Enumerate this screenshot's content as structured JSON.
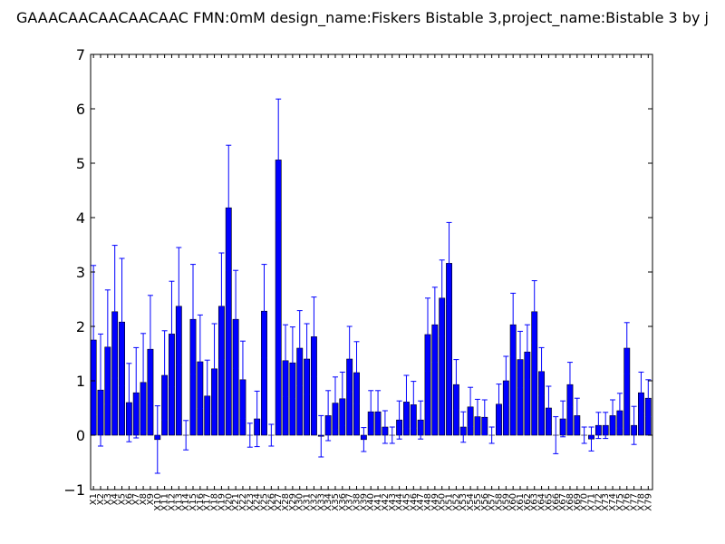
{
  "colors": {
    "bar": "#0000ff",
    "bar_edge": "#000000",
    "error": "#0000ff",
    "axes": "#000000",
    "background": "#ffffff"
  },
  "chart_data": {
    "type": "bar",
    "title": "GAAACAACAACAACAAC  FMN:0mM  design_name:Fiskers Bistable 3,project_name:Bistable 3 by j",
    "xlabel": "",
    "ylabel": "",
    "ylim": [
      -1,
      7
    ],
    "yticks": [
      -1,
      0,
      1,
      2,
      3,
      4,
      5,
      6,
      7
    ],
    "grid": false,
    "categories": [
      "X1",
      "X2",
      "X3",
      "X4",
      "X5",
      "X6",
      "X7",
      "X8",
      "X9",
      "X10",
      "X11",
      "X12",
      "X13",
      "X14",
      "X15",
      "X16",
      "X17",
      "X18",
      "X19",
      "X20",
      "X21",
      "X22",
      "X23",
      "X24",
      "X25",
      "X26",
      "X27",
      "X28",
      "X29",
      "X30",
      "X31",
      "X32",
      "X33",
      "X34",
      "X35",
      "X36",
      "X37",
      "X38",
      "X39",
      "X40",
      "X41",
      "X42",
      "X43",
      "X44",
      "X45",
      "X46",
      "X47",
      "X48",
      "X49",
      "X50",
      "X51",
      "X52",
      "X53",
      "X54",
      "X55",
      "X56",
      "X57",
      "X58",
      "X59",
      "X60",
      "X61",
      "X62",
      "X63",
      "X64",
      "X65",
      "X66",
      "X67",
      "X68",
      "X69",
      "X70",
      "X71",
      "X72",
      "X73",
      "X74",
      "X75",
      "X76",
      "X77",
      "X78",
      "X79"
    ],
    "values": [
      1.75,
      0.83,
      1.62,
      2.27,
      2.08,
      0.6,
      0.78,
      0.97,
      1.58,
      -0.08,
      1.1,
      1.86,
      2.37,
      0.0,
      2.13,
      1.35,
      0.72,
      1.22,
      2.37,
      4.18,
      2.13,
      1.02,
      0.0,
      0.3,
      2.28,
      0.0,
      5.06,
      1.37,
      1.33,
      1.6,
      1.4,
      1.81,
      -0.02,
      0.36,
      0.59,
      0.67,
      1.4,
      1.15,
      -0.08,
      0.43,
      0.43,
      0.15,
      0.0,
      0.28,
      0.61,
      0.56,
      0.28,
      1.85,
      2.03,
      2.52,
      3.16,
      0.93,
      0.15,
      0.52,
      0.34,
      0.33,
      0.0,
      0.57,
      1.0,
      2.03,
      1.39,
      1.53,
      2.27,
      1.17,
      0.5,
      0.0,
      0.3,
      0.93,
      0.36,
      0.0,
      -0.07,
      0.18,
      0.18,
      0.36,
      0.45,
      1.6,
      0.18,
      0.78,
      0.68
    ],
    "errors": [
      1.37,
      1.03,
      1.05,
      1.22,
      1.17,
      0.72,
      0.83,
      0.9,
      0.99,
      0.62,
      0.82,
      0.97,
      1.08,
      0.27,
      1.01,
      0.86,
      0.66,
      0.83,
      0.98,
      1.15,
      0.9,
      0.71,
      0.22,
      0.51,
      0.86,
      0.2,
      1.12,
      0.66,
      0.66,
      0.69,
      0.65,
      0.73,
      0.38,
      0.46,
      0.48,
      0.49,
      0.6,
      0.57,
      0.22,
      0.39,
      0.39,
      0.3,
      0.15,
      0.35,
      0.49,
      0.43,
      0.35,
      0.67,
      0.69,
      0.7,
      0.75,
      0.46,
      0.28,
      0.36,
      0.32,
      0.32,
      0.15,
      0.37,
      0.45,
      0.58,
      0.52,
      0.5,
      0.57,
      0.44,
      0.4,
      0.34,
      0.33,
      0.41,
      0.32,
      0.15,
      0.22,
      0.24,
      0.24,
      0.29,
      0.32,
      0.47,
      0.35,
      0.38,
      0.34
    ]
  }
}
